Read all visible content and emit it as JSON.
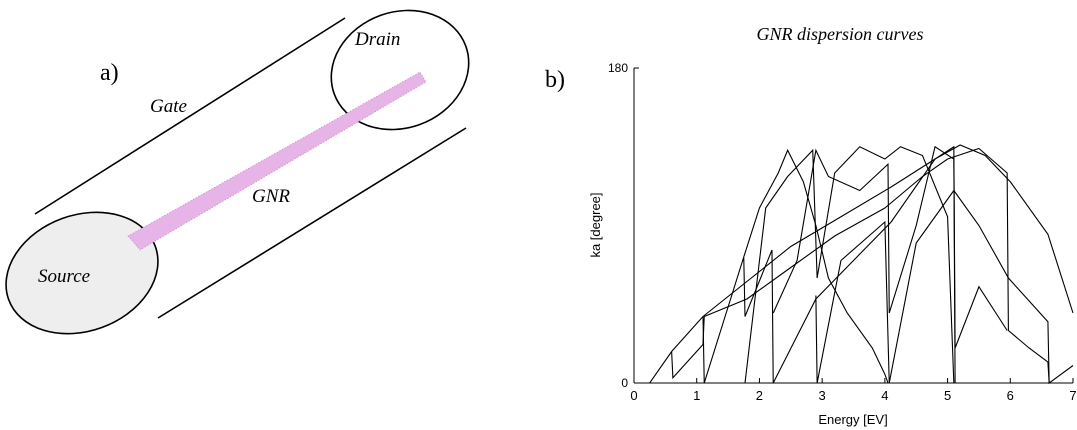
{
  "diagram": {
    "panel_label": "a)",
    "gate": "Gate",
    "drain": "Drain",
    "source": "Source",
    "ribbon": "GNR"
  },
  "chart_data": {
    "type": "line",
    "panel_label": "b)",
    "title": "GNR dispersion curves",
    "x_label": "Energy [EV]",
    "y_label": "ka [degree]",
    "xlim": [
      0,
      7
    ],
    "ylim": [
      0,
      180
    ],
    "xticks": [
      0,
      1,
      2,
      3,
      4,
      5,
      6,
      7
    ],
    "yticks": [
      0,
      180
    ],
    "series": [
      {
        "color": "#000000",
        "x": [
          0.25,
          0.6,
          1.1,
          1.8,
          2.5,
          3.3,
          4.1,
          4.8,
          5.2,
          5.6,
          6.0,
          6.6,
          7.0
        ],
        "values": [
          0,
          18,
          38,
          58,
          78,
          95,
          112,
          128,
          136,
          130,
          115,
          85,
          40
        ]
      },
      {
        "color": "#000000",
        "x": [
          0.6,
          0.62,
          1.1,
          1.12,
          1.8,
          2.5,
          3.2,
          4.0,
          4.6,
          5.0,
          5.5,
          5.95,
          5.97,
          6.3,
          6.6,
          6.62
        ],
        "values": [
          18,
          3,
          22,
          38,
          48,
          66,
          84,
          100,
          118,
          128,
          134,
          120,
          30,
          20,
          12,
          0
        ]
      },
      {
        "color": "#000000",
        "x": [
          1.1,
          1.12,
          1.75,
          1.77,
          2.2,
          2.22,
          2.9,
          3.5,
          4.1,
          4.8,
          5.1,
          5.12,
          5.5,
          5.95
        ],
        "values": [
          38,
          0,
          72,
          38,
          76,
          0,
          48,
          70,
          92,
          128,
          135,
          20,
          55,
          30
        ]
      },
      {
        "color": "#000000",
        "x": [
          1.75,
          2.0,
          2.3,
          2.45,
          2.7,
          2.9,
          3.1,
          3.4,
          3.8,
          4.0,
          4.05
        ],
        "values": [
          72,
          100,
          120,
          133,
          115,
          90,
          60,
          40,
          20,
          5,
          0
        ]
      },
      {
        "color": "#000000",
        "x": [
          1.77,
          2.1,
          2.45,
          2.85,
          2.92,
          3.2,
          3.6,
          4.0,
          4.25,
          4.6,
          5.0,
          5.1
        ],
        "values": [
          0,
          100,
          118,
          133,
          60,
          120,
          135,
          128,
          135,
          130,
          95,
          0
        ]
      },
      {
        "color": "#000000",
        "x": [
          2.22,
          2.6,
          2.9,
          3.1,
          3.6,
          4.05,
          4.07,
          4.5,
          4.8,
          5.1,
          5.12
        ],
        "values": [
          40,
          70,
          133,
          118,
          110,
          125,
          40,
          90,
          135,
          128,
          0
        ]
      },
      {
        "color": "#000000",
        "x": [
          2.9,
          2.92,
          3.3,
          4.0,
          4.07,
          4.5,
          5.1,
          5.5,
          5.97,
          6.6,
          6.62,
          7.0
        ],
        "values": [
          50,
          0,
          70,
          92,
          0,
          80,
          110,
          90,
          60,
          35,
          0,
          10
        ]
      }
    ]
  }
}
